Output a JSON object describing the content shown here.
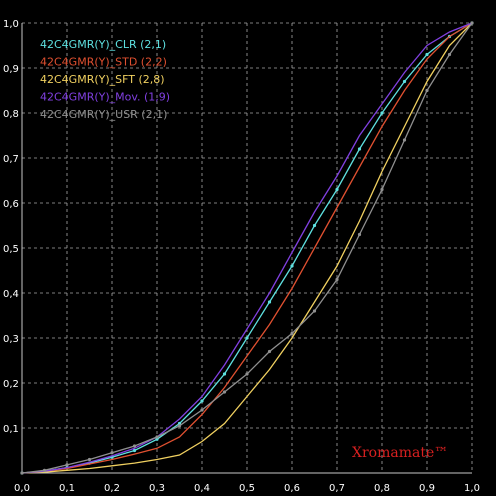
{
  "chart_data": {
    "type": "line",
    "xlim": [
      0,
      1
    ],
    "ylim": [
      0,
      1
    ],
    "grid": true,
    "legend_position": "top-left",
    "x_ticks": [
      "0,0",
      "0,1",
      "0,2",
      "0,3",
      "0,4",
      "0,5",
      "0,6",
      "0,7",
      "0,8",
      "0,9",
      "1,0"
    ],
    "y_ticks": [
      "0,1",
      "0,2",
      "0,3",
      "0,4",
      "0,5",
      "0,6",
      "0,7",
      "0,8",
      "0,9",
      "1,0"
    ],
    "background": "#000000",
    "grid_color": "#a8a8a8",
    "watermark": "Xromamate™",
    "watermark_color": "#d82020",
    "series": [
      {
        "name": "42C4GMR(Y)_CLR (2,1)",
        "color": "#5ee0e0",
        "markers": true,
        "points": [
          [
            0,
            0
          ],
          [
            0.05,
            0.004
          ],
          [
            0.1,
            0.012
          ],
          [
            0.15,
            0.022
          ],
          [
            0.2,
            0.035
          ],
          [
            0.25,
            0.05
          ],
          [
            0.3,
            0.075
          ],
          [
            0.35,
            0.11
          ],
          [
            0.4,
            0.16
          ],
          [
            0.45,
            0.22
          ],
          [
            0.5,
            0.3
          ],
          [
            0.55,
            0.38
          ],
          [
            0.6,
            0.46
          ],
          [
            0.65,
            0.55
          ],
          [
            0.7,
            0.63
          ],
          [
            0.75,
            0.72
          ],
          [
            0.8,
            0.8
          ],
          [
            0.85,
            0.87
          ],
          [
            0.9,
            0.93
          ],
          [
            0.95,
            0.97
          ],
          [
            1,
            1
          ]
        ]
      },
      {
        "name": "42C4GMR(Y)_STD (2,2)",
        "color": "#e05030",
        "markers": false,
        "points": [
          [
            0,
            0
          ],
          [
            0.05,
            0.004
          ],
          [
            0.1,
            0.01
          ],
          [
            0.15,
            0.02
          ],
          [
            0.2,
            0.03
          ],
          [
            0.25,
            0.042
          ],
          [
            0.3,
            0.055
          ],
          [
            0.35,
            0.08
          ],
          [
            0.4,
            0.13
          ],
          [
            0.45,
            0.19
          ],
          [
            0.5,
            0.26
          ],
          [
            0.55,
            0.33
          ],
          [
            0.6,
            0.41
          ],
          [
            0.65,
            0.5
          ],
          [
            0.7,
            0.59
          ],
          [
            0.75,
            0.68
          ],
          [
            0.8,
            0.77
          ],
          [
            0.85,
            0.85
          ],
          [
            0.9,
            0.92
          ],
          [
            0.95,
            0.97
          ],
          [
            1,
            1
          ]
        ]
      },
      {
        "name": "42C4GMR(Y)_SFT (2,8)",
        "color": "#f0d060",
        "markers": false,
        "points": [
          [
            0,
            0
          ],
          [
            0.05,
            0.002
          ],
          [
            0.1,
            0.006
          ],
          [
            0.15,
            0.01
          ],
          [
            0.2,
            0.016
          ],
          [
            0.25,
            0.022
          ],
          [
            0.3,
            0.03
          ],
          [
            0.35,
            0.04
          ],
          [
            0.4,
            0.07
          ],
          [
            0.45,
            0.11
          ],
          [
            0.5,
            0.17
          ],
          [
            0.55,
            0.23
          ],
          [
            0.6,
            0.3
          ],
          [
            0.65,
            0.38
          ],
          [
            0.7,
            0.46
          ],
          [
            0.75,
            0.56
          ],
          [
            0.8,
            0.67
          ],
          [
            0.85,
            0.77
          ],
          [
            0.9,
            0.87
          ],
          [
            0.95,
            0.95
          ],
          [
            1,
            1
          ]
        ]
      },
      {
        "name": "42C4GMR(Y)_Mov. (1,9)",
        "color": "#8040e0",
        "markers": false,
        "points": [
          [
            0,
            0
          ],
          [
            0.05,
            0.004
          ],
          [
            0.1,
            0.012
          ],
          [
            0.15,
            0.024
          ],
          [
            0.2,
            0.038
          ],
          [
            0.25,
            0.055
          ],
          [
            0.3,
            0.08
          ],
          [
            0.35,
            0.12
          ],
          [
            0.4,
            0.17
          ],
          [
            0.45,
            0.24
          ],
          [
            0.5,
            0.32
          ],
          [
            0.55,
            0.4
          ],
          [
            0.6,
            0.49
          ],
          [
            0.65,
            0.58
          ],
          [
            0.7,
            0.66
          ],
          [
            0.75,
            0.75
          ],
          [
            0.8,
            0.82
          ],
          [
            0.85,
            0.89
          ],
          [
            0.9,
            0.95
          ],
          [
            0.95,
            0.98
          ],
          [
            1,
            1
          ]
        ]
      },
      {
        "name": "42C4GMR(Y)_USR (2,1)",
        "color": "#909090",
        "markers": true,
        "points": [
          [
            0,
            0
          ],
          [
            0.05,
            0.006
          ],
          [
            0.1,
            0.018
          ],
          [
            0.15,
            0.03
          ],
          [
            0.2,
            0.045
          ],
          [
            0.25,
            0.06
          ],
          [
            0.3,
            0.08
          ],
          [
            0.35,
            0.105
          ],
          [
            0.4,
            0.14
          ],
          [
            0.45,
            0.18
          ],
          [
            0.5,
            0.22
          ],
          [
            0.55,
            0.27
          ],
          [
            0.6,
            0.31
          ],
          [
            0.65,
            0.36
          ],
          [
            0.7,
            0.43
          ],
          [
            0.75,
            0.53
          ],
          [
            0.8,
            0.63
          ],
          [
            0.85,
            0.74
          ],
          [
            0.9,
            0.85
          ],
          [
            0.95,
            0.93
          ],
          [
            1,
            1
          ]
        ]
      }
    ]
  }
}
